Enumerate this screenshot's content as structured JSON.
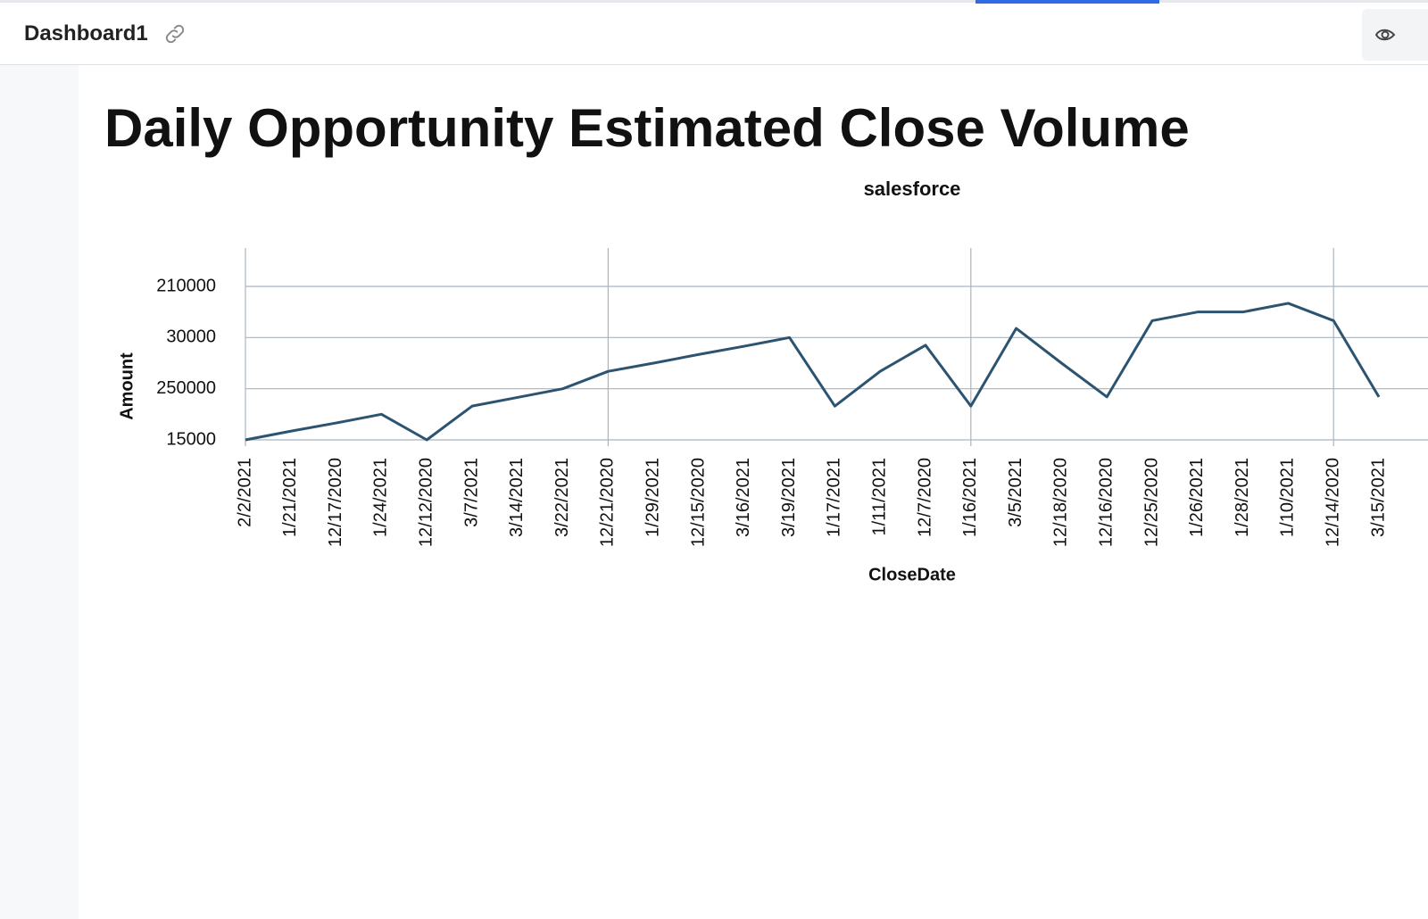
{
  "header": {
    "title": "Dashboard1"
  },
  "chart_data": {
    "type": "line",
    "title": "Daily Opportunity Estimated Close Volume",
    "subtitle": "salesforce",
    "x_label": "CloseDate",
    "y_label": "Amount",
    "categories": [
      "2/2/2021",
      "1/21/2021",
      "12/17/2020",
      "1/24/2021",
      "12/12/2020",
      "3/7/2021",
      "3/14/2021",
      "3/22/2021",
      "12/21/2020",
      "1/29/2021",
      "12/15/2020",
      "3/16/2021",
      "3/19/2021",
      "1/17/2021",
      "1/11/2021",
      "12/7/2020",
      "1/16/2021",
      "3/5/2021",
      "12/18/2020",
      "12/16/2020",
      "12/25/2020",
      "1/26/2021",
      "1/28/2021",
      "1/10/2021",
      "12/14/2020",
      "3/15/2021"
    ],
    "series": [
      {
        "name": "Amount",
        "color": "#2c5470",
        "values": [
          0,
          0.17,
          0.33,
          0.5,
          0,
          0.66,
          0.83,
          1.0,
          1.34,
          1.5,
          1.67,
          1.83,
          2.0,
          0.66,
          1.34,
          1.85,
          0.66,
          2.18,
          1.5,
          0.84,
          2.33,
          2.5,
          2.5,
          2.67,
          2.33,
          0.84
        ]
      }
    ],
    "ylim": [
      0,
      3.75
    ],
    "yticks": [
      {
        "value": 0,
        "label": "15000"
      },
      {
        "value": 1,
        "label": "250000"
      },
      {
        "value": 2,
        "label": "30000"
      },
      {
        "value": 3,
        "label": "210000"
      }
    ],
    "grid": true
  }
}
